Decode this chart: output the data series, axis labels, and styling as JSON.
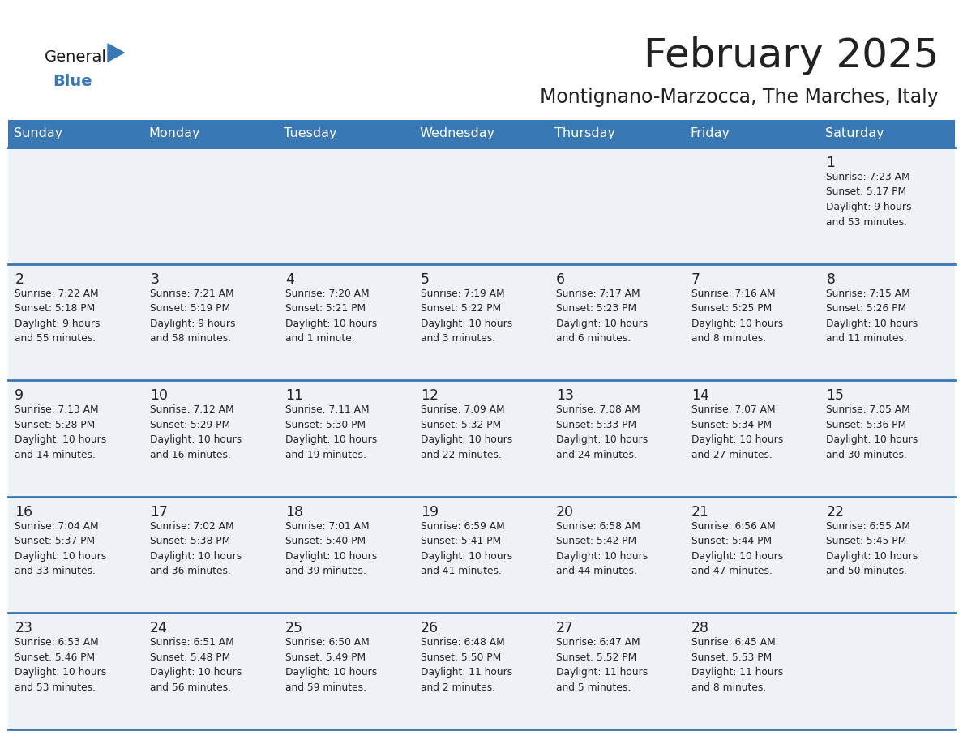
{
  "title": "February 2025",
  "subtitle": "Montignano-Marzocca, The Marches, Italy",
  "header_color": "#3878b4",
  "header_text_color": "#ffffff",
  "cell_bg_color": "#eef2f7",
  "border_color": "#3878b4",
  "text_color": "#222222",
  "days_of_week": [
    "Sunday",
    "Monday",
    "Tuesday",
    "Wednesday",
    "Thursday",
    "Friday",
    "Saturday"
  ],
  "weeks": [
    [
      {
        "day": null,
        "info": null
      },
      {
        "day": null,
        "info": null
      },
      {
        "day": null,
        "info": null
      },
      {
        "day": null,
        "info": null
      },
      {
        "day": null,
        "info": null
      },
      {
        "day": null,
        "info": null
      },
      {
        "day": 1,
        "info": "Sunrise: 7:23 AM\nSunset: 5:17 PM\nDaylight: 9 hours\nand 53 minutes."
      }
    ],
    [
      {
        "day": 2,
        "info": "Sunrise: 7:22 AM\nSunset: 5:18 PM\nDaylight: 9 hours\nand 55 minutes."
      },
      {
        "day": 3,
        "info": "Sunrise: 7:21 AM\nSunset: 5:19 PM\nDaylight: 9 hours\nand 58 minutes."
      },
      {
        "day": 4,
        "info": "Sunrise: 7:20 AM\nSunset: 5:21 PM\nDaylight: 10 hours\nand 1 minute."
      },
      {
        "day": 5,
        "info": "Sunrise: 7:19 AM\nSunset: 5:22 PM\nDaylight: 10 hours\nand 3 minutes."
      },
      {
        "day": 6,
        "info": "Sunrise: 7:17 AM\nSunset: 5:23 PM\nDaylight: 10 hours\nand 6 minutes."
      },
      {
        "day": 7,
        "info": "Sunrise: 7:16 AM\nSunset: 5:25 PM\nDaylight: 10 hours\nand 8 minutes."
      },
      {
        "day": 8,
        "info": "Sunrise: 7:15 AM\nSunset: 5:26 PM\nDaylight: 10 hours\nand 11 minutes."
      }
    ],
    [
      {
        "day": 9,
        "info": "Sunrise: 7:13 AM\nSunset: 5:28 PM\nDaylight: 10 hours\nand 14 minutes."
      },
      {
        "day": 10,
        "info": "Sunrise: 7:12 AM\nSunset: 5:29 PM\nDaylight: 10 hours\nand 16 minutes."
      },
      {
        "day": 11,
        "info": "Sunrise: 7:11 AM\nSunset: 5:30 PM\nDaylight: 10 hours\nand 19 minutes."
      },
      {
        "day": 12,
        "info": "Sunrise: 7:09 AM\nSunset: 5:32 PM\nDaylight: 10 hours\nand 22 minutes."
      },
      {
        "day": 13,
        "info": "Sunrise: 7:08 AM\nSunset: 5:33 PM\nDaylight: 10 hours\nand 24 minutes."
      },
      {
        "day": 14,
        "info": "Sunrise: 7:07 AM\nSunset: 5:34 PM\nDaylight: 10 hours\nand 27 minutes."
      },
      {
        "day": 15,
        "info": "Sunrise: 7:05 AM\nSunset: 5:36 PM\nDaylight: 10 hours\nand 30 minutes."
      }
    ],
    [
      {
        "day": 16,
        "info": "Sunrise: 7:04 AM\nSunset: 5:37 PM\nDaylight: 10 hours\nand 33 minutes."
      },
      {
        "day": 17,
        "info": "Sunrise: 7:02 AM\nSunset: 5:38 PM\nDaylight: 10 hours\nand 36 minutes."
      },
      {
        "day": 18,
        "info": "Sunrise: 7:01 AM\nSunset: 5:40 PM\nDaylight: 10 hours\nand 39 minutes."
      },
      {
        "day": 19,
        "info": "Sunrise: 6:59 AM\nSunset: 5:41 PM\nDaylight: 10 hours\nand 41 minutes."
      },
      {
        "day": 20,
        "info": "Sunrise: 6:58 AM\nSunset: 5:42 PM\nDaylight: 10 hours\nand 44 minutes."
      },
      {
        "day": 21,
        "info": "Sunrise: 6:56 AM\nSunset: 5:44 PM\nDaylight: 10 hours\nand 47 minutes."
      },
      {
        "day": 22,
        "info": "Sunrise: 6:55 AM\nSunset: 5:45 PM\nDaylight: 10 hours\nand 50 minutes."
      }
    ],
    [
      {
        "day": 23,
        "info": "Sunrise: 6:53 AM\nSunset: 5:46 PM\nDaylight: 10 hours\nand 53 minutes."
      },
      {
        "day": 24,
        "info": "Sunrise: 6:51 AM\nSunset: 5:48 PM\nDaylight: 10 hours\nand 56 minutes."
      },
      {
        "day": 25,
        "info": "Sunrise: 6:50 AM\nSunset: 5:49 PM\nDaylight: 10 hours\nand 59 minutes."
      },
      {
        "day": 26,
        "info": "Sunrise: 6:48 AM\nSunset: 5:50 PM\nDaylight: 11 hours\nand 2 minutes."
      },
      {
        "day": 27,
        "info": "Sunrise: 6:47 AM\nSunset: 5:52 PM\nDaylight: 11 hours\nand 5 minutes."
      },
      {
        "day": 28,
        "info": "Sunrise: 6:45 AM\nSunset: 5:53 PM\nDaylight: 11 hours\nand 8 minutes."
      },
      {
        "day": null,
        "info": null
      }
    ]
  ],
  "logo_color_general": "#1a1a1a",
  "logo_color_blue": "#3878b4",
  "logo_triangle_color": "#3878b4",
  "fig_width": 11.88,
  "fig_height": 9.18,
  "dpi": 100
}
